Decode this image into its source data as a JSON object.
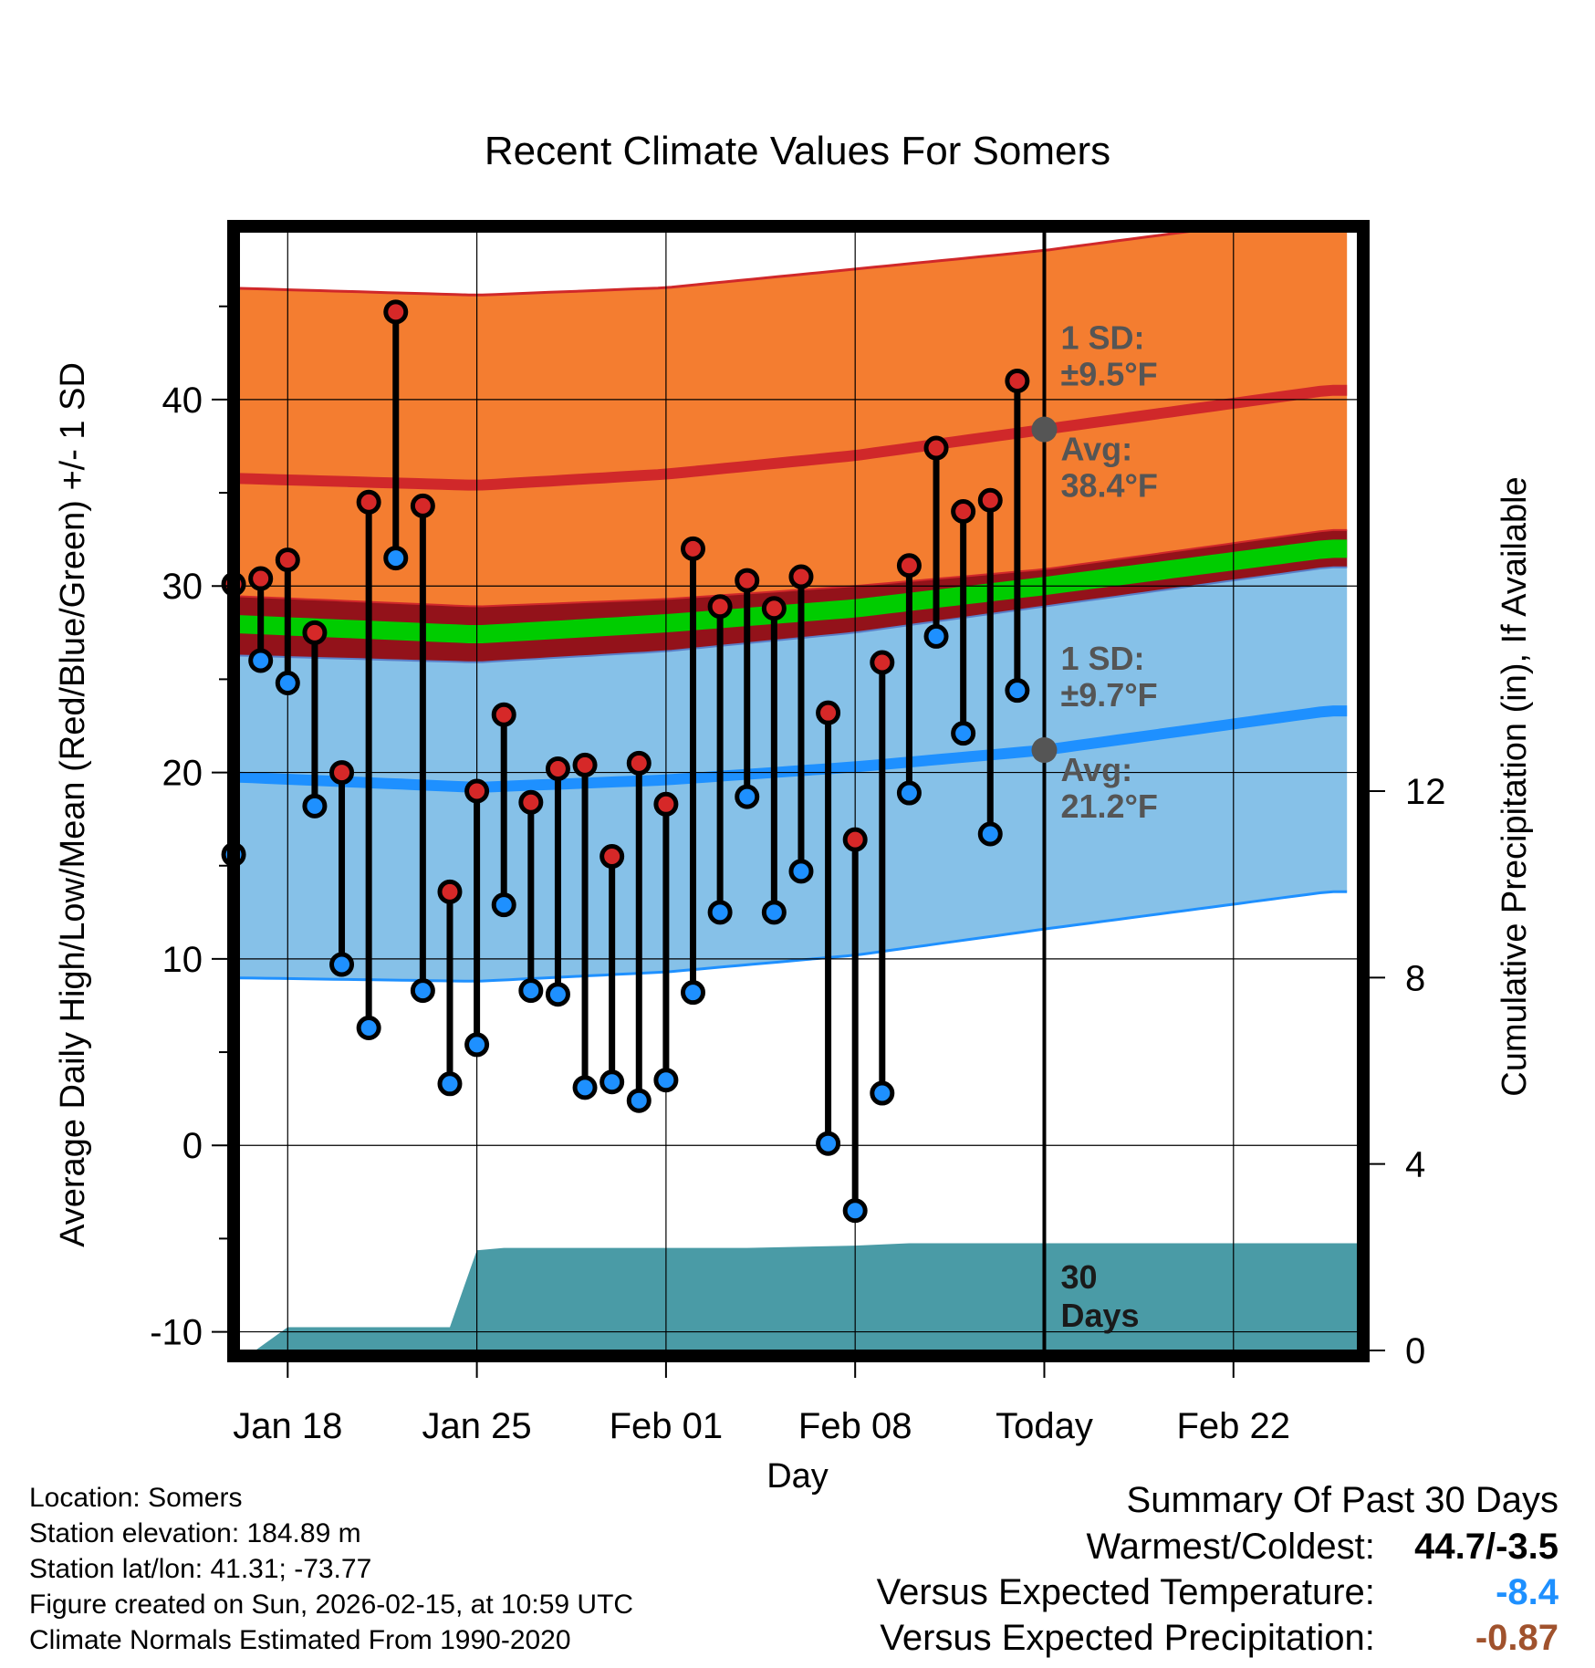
{
  "chart_data": {
    "type": "line",
    "title": "Recent Climate Values For Somers",
    "xlabel": "Day",
    "ylabel": "Average Daily High/Low/Mean (Red/Blue/Green) +/- 1 SD",
    "y2label": "Cumulative Precipitation (in), If Available",
    "xlim": [
      -1.8,
      39.6
    ],
    "ylim": [
      -11,
      49
    ],
    "y2lim": [
      0,
      24
    ],
    "yticks": [
      -10,
      0,
      10,
      20,
      30,
      40
    ],
    "y2ticks": [
      0,
      4,
      8,
      12
    ],
    "xticks": [
      {
        "day": 0,
        "label": "Jan 18"
      },
      {
        "day": 7,
        "label": "Jan 25"
      },
      {
        "day": 14,
        "label": "Feb 01"
      },
      {
        "day": 21,
        "label": "Feb 08"
      },
      {
        "day": 28,
        "label": "Today"
      },
      {
        "day": 35,
        "label": "Feb 22"
      }
    ],
    "today_day": 28,
    "normals": {
      "high_avg": [
        [
          -2.6,
          35.8
        ],
        [
          7,
          35.4
        ],
        [
          14,
          36.0
        ],
        [
          21,
          37.0
        ],
        [
          28,
          38.4
        ],
        [
          38.5,
          40.5
        ]
      ],
      "high_upper": [
        [
          -2.6,
          46.0
        ],
        [
          7,
          45.6
        ],
        [
          14,
          46.0
        ],
        [
          21,
          47.0
        ],
        [
          28,
          48.0
        ],
        [
          38.5,
          50.0
        ]
      ],
      "mean_avg": [
        [
          -2.6,
          28.0
        ],
        [
          7,
          27.4
        ],
        [
          14,
          28.0
        ],
        [
          21,
          28.8
        ],
        [
          28,
          30.0
        ],
        [
          38.5,
          32.0
        ]
      ],
      "low_avg": [
        [
          -2.6,
          19.8
        ],
        [
          7,
          19.2
        ],
        [
          14,
          19.6
        ],
        [
          21,
          20.3
        ],
        [
          28,
          21.2
        ],
        [
          38.5,
          23.3
        ]
      ],
      "low_lower": [
        [
          -2.6,
          9.0
        ],
        [
          7,
          8.8
        ],
        [
          14,
          9.3
        ],
        [
          21,
          10.2
        ],
        [
          28,
          11.6
        ],
        [
          38.5,
          13.6
        ]
      ]
    },
    "series": [
      {
        "name": "High",
        "color": "#d62828",
        "values": [
          30.1,
          30.4,
          31.4,
          27.5,
          20.0,
          34.5,
          44.7,
          34.3,
          13.6,
          19.0,
          23.1,
          18.4,
          20.2,
          20.4,
          15.5,
          20.5,
          18.3,
          32.0,
          28.9,
          30.3,
          28.8,
          30.5,
          23.2,
          16.4,
          25.9,
          31.1,
          37.4,
          34.0,
          34.6,
          41.0
        ]
      },
      {
        "name": "Low",
        "color": "#1e90ff",
        "values": [
          15.6,
          26.0,
          24.8,
          18.2,
          9.7,
          6.3,
          31.5,
          8.3,
          3.3,
          5.4,
          12.9,
          8.3,
          8.1,
          3.1,
          3.4,
          2.4,
          3.5,
          8.2,
          12.5,
          18.7,
          12.5,
          14.7,
          0.1,
          -3.5,
          2.8,
          18.9,
          27.3,
          22.1,
          16.7,
          24.4
        ]
      }
    ],
    "days": [
      -2,
      -1,
      0,
      1,
      2,
      3,
      4,
      5,
      6,
      7,
      8,
      9,
      10,
      11,
      12,
      13,
      14,
      15,
      16,
      17,
      18,
      19,
      20,
      21,
      22,
      23,
      24,
      25,
      26,
      27
    ],
    "precip_cumulative": [
      [
        -1.2,
        0
      ],
      [
        0,
        0.5
      ],
      [
        6,
        0.5
      ],
      [
        7,
        2.15
      ],
      [
        8,
        2.2
      ],
      [
        17,
        2.2
      ],
      [
        21,
        2.25
      ],
      [
        23,
        2.3
      ],
      [
        39.6,
        2.3
      ]
    ],
    "annotations": {
      "high_sd": "1 SD:",
      "high_sd_val": "±9.5°F",
      "high_avg_lab": "Avg:",
      "high_avg_val": "38.4°F",
      "low_sd": "1 SD:",
      "low_sd_val": "±9.7°F",
      "low_avg_lab": "Avg:",
      "low_avg_val": "21.2°F",
      "days_num": "30",
      "days_word": "Days"
    },
    "colors": {
      "high_band": "#f47d30",
      "high_line": "#d0282a",
      "mean_band": "#93121a",
      "mean_line": "#00cc00",
      "low_band": "#86c1e8",
      "low_line": "#1e90ff",
      "precip": "#4a9ba6",
      "annot": "#555555"
    }
  },
  "footer": {
    "location": "Location: Somers",
    "elevation": "Station elevation: 184.89 m",
    "latlon": "Station lat/lon: 41.31; -73.77",
    "created": "Figure created on Sun, 2026-02-15, at 10:59 UTC",
    "normals": "Climate Normals Estimated From 1990-2020"
  },
  "summary": {
    "heading": "Summary Of Past 30 Days",
    "warm_label": "Warmest/Coldest:",
    "warm_value": "44.7/-3.5",
    "temp_label": "Versus Expected Temperature:",
    "temp_value": "-8.4",
    "prcp_label": "Versus Expected Precipitation:",
    "prcp_value": "-0.87"
  }
}
